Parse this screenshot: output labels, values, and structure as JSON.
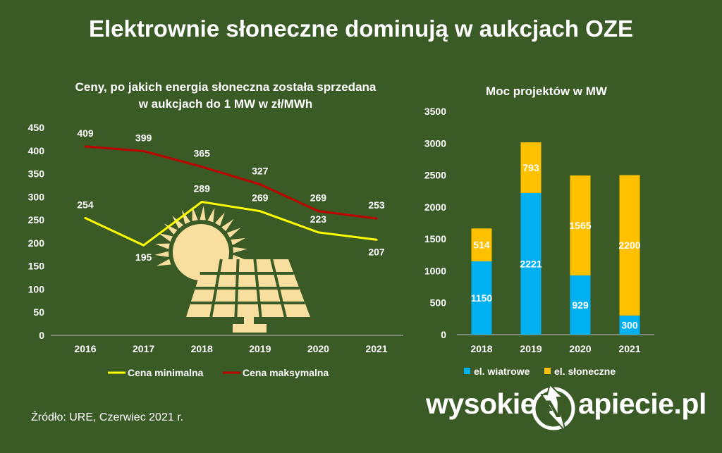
{
  "title": "Elektrownie słoneczne dominują w aukcjach OZE",
  "source": "Źródło: URE, Czerwiec 2021 r.",
  "logo": {
    "left": "wysokie",
    "right": "apiecie.pl",
    "mark": "N"
  },
  "chart_data": [
    {
      "type": "line",
      "title_lines": [
        "Ceny, po jakich energia słoneczna została sprzedana",
        "w aukcjach do 1 MW w zł/MWh"
      ],
      "x": [
        "2016",
        "2017",
        "2018",
        "2019",
        "2020",
        "2021"
      ],
      "ylim": [
        0,
        450
      ],
      "yticks": [
        "0",
        "50",
        "100",
        "150",
        "200",
        "250",
        "300",
        "350",
        "400",
        "450"
      ],
      "series": [
        {
          "name": "Cena minimalna",
          "values": [
            254,
            195,
            289,
            269,
            223,
            207
          ],
          "color": "#ffff00"
        },
        {
          "name": "Cena maksymalna",
          "values": [
            409,
            399,
            365,
            327,
            269,
            253
          ],
          "color": "#c00000"
        }
      ],
      "legend": "bottom",
      "grid": false
    },
    {
      "type": "bar",
      "stacked": true,
      "title": "Moc projektów w MW",
      "categories": [
        "2018",
        "2019",
        "2020",
        "2021"
      ],
      "ylim": [
        0,
        3500
      ],
      "yticks": [
        "0",
        "500",
        "1000",
        "1500",
        "2000",
        "2500",
        "3000",
        "3500"
      ],
      "series": [
        {
          "name": "el. wiatrowe",
          "values": [
            1150,
            2221,
            929,
            300
          ],
          "color": "#00b0f0"
        },
        {
          "name": "el. słoneczne",
          "values": [
            514,
            793,
            1565,
            2200
          ],
          "color": "#ffc000"
        }
      ],
      "legend": "bottom",
      "grid": false
    }
  ],
  "colors": {
    "background": "#3a5a26",
    "illustration": "#f8dfa0"
  },
  "icons": [
    "sun-icon",
    "solar-panel-icon",
    "lightning-icon"
  ]
}
